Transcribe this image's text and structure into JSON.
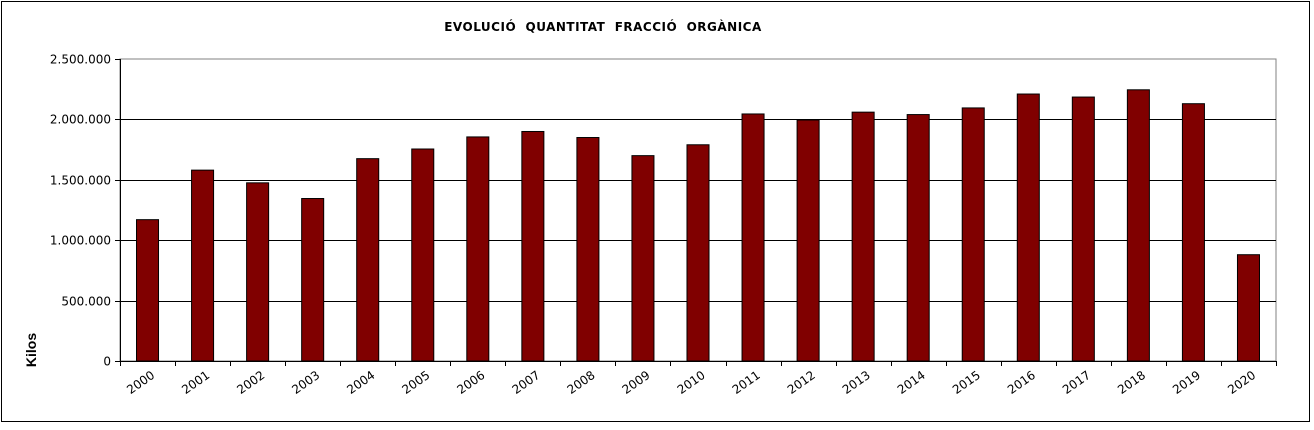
{
  "chart_data": {
    "type": "bar",
    "title": "EVOLUCIÓ  QUANTITAT  FRACCIÓ  ORGÀNICA",
    "xlabel": "",
    "ylabel": "Kilos",
    "categories": [
      "2000",
      "2001",
      "2002",
      "2003",
      "2004",
      "2005",
      "2006",
      "2007",
      "2008",
      "2009",
      "2010",
      "2011",
      "2012",
      "2013",
      "2014",
      "2015",
      "2016",
      "2017",
      "2018",
      "2019",
      "2020"
    ],
    "values": [
      1170000,
      1580000,
      1475000,
      1345000,
      1675000,
      1755000,
      1855000,
      1900000,
      1850000,
      1700000,
      1790000,
      2045000,
      1995000,
      2060000,
      2040000,
      2095000,
      2210000,
      2185000,
      2245000,
      2130000,
      880000
    ],
    "ylim": [
      0,
      2500000
    ],
    "yticks": [
      {
        "value": 0,
        "label": "0"
      },
      {
        "value": 500000,
        "label": "500.000"
      },
      {
        "value": 1000000,
        "label": "1.000.000"
      },
      {
        "value": 1500000,
        "label": "1.500.000"
      },
      {
        "value": 2000000,
        "label": "2.000.000"
      },
      {
        "value": 2500000,
        "label": "2.500.000"
      }
    ],
    "grid": true,
    "legend": "none",
    "bar_color": "#800000"
  }
}
